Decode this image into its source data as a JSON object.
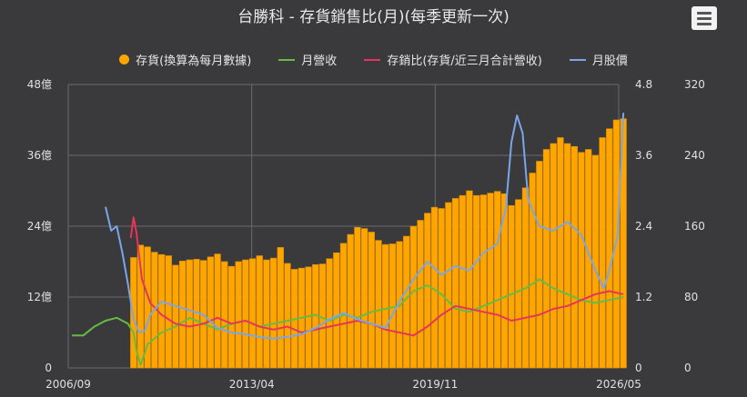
{
  "header": {
    "title": "台勝科 - 存貨銷售比(月)(每季更新一次)"
  },
  "menu": {
    "icon": "hamburger-menu-icon"
  },
  "colors": {
    "background": "#3a3a3d",
    "grid": "#6b6b6e",
    "bars": "#ffa500",
    "revenue": "#66bb44",
    "ratio": "#e8335a",
    "price": "#7aa6e8"
  },
  "chart_data": {
    "type": "bar+line",
    "title": "台勝科 - 存貨銷售比(月)(每季更新一次)",
    "legend": {
      "position": "top",
      "entries": [
        "存貨(換算為每月數據)",
        "月營收",
        "存銷比(存貨/近三月合計營收)",
        "月股價"
      ]
    },
    "grid": true,
    "x_axis": {
      "ticks": [
        "2006/09",
        "2013/04",
        "2019/11",
        "2026/05"
      ],
      "range": [
        "2006/09",
        "2026/05"
      ]
    },
    "y_axis_left": {
      "ticks": [
        "0",
        "12億",
        "24億",
        "36億",
        "48億"
      ],
      "range": [
        0,
        48
      ]
    },
    "y_axis_right1": {
      "ticks": [
        "0",
        "1.2",
        "2.4",
        "3.6",
        "4.8"
      ],
      "range": [
        0,
        4.8
      ]
    },
    "y_axis_right2": {
      "ticks": [
        "0",
        "80",
        "160",
        "240",
        "320"
      ],
      "range": [
        0,
        320
      ]
    },
    "series": [
      {
        "name": "存貨(換算為每月數據)",
        "kind": "bar",
        "axis": "left",
        "points": [
          [
            2009.0,
            18.7
          ],
          [
            2009.25,
            20.8
          ],
          [
            2009.5,
            20.5
          ],
          [
            2009.75,
            19.6
          ],
          [
            2010.0,
            19.2
          ],
          [
            2010.25,
            19.0
          ],
          [
            2010.5,
            17.4
          ],
          [
            2010.75,
            18.1
          ],
          [
            2011.0,
            18.3
          ],
          [
            2011.25,
            18.4
          ],
          [
            2011.5,
            18.2
          ],
          [
            2011.75,
            18.8
          ],
          [
            2012.0,
            19.3
          ],
          [
            2012.25,
            18.0
          ],
          [
            2012.5,
            17.2
          ],
          [
            2012.75,
            18.0
          ],
          [
            2013.0,
            18.3
          ],
          [
            2013.25,
            18.5
          ],
          [
            2013.5,
            19.0
          ],
          [
            2013.75,
            18.3
          ],
          [
            2014.0,
            18.6
          ],
          [
            2014.25,
            20.4
          ],
          [
            2014.5,
            17.7
          ],
          [
            2014.75,
            16.7
          ],
          [
            2015.0,
            16.9
          ],
          [
            2015.25,
            17.1
          ],
          [
            2015.5,
            17.5
          ],
          [
            2015.75,
            17.6
          ],
          [
            2016.0,
            18.5
          ],
          [
            2016.25,
            19.5
          ],
          [
            2016.5,
            21.1
          ],
          [
            2016.75,
            22.6
          ],
          [
            2017.0,
            23.8
          ],
          [
            2017.25,
            23.6
          ],
          [
            2017.5,
            23.0
          ],
          [
            2017.75,
            21.6
          ],
          [
            2018.0,
            20.9
          ],
          [
            2018.25,
            21.0
          ],
          [
            2018.5,
            21.4
          ],
          [
            2018.75,
            22.3
          ],
          [
            2019.0,
            24.0
          ],
          [
            2019.25,
            25.0
          ],
          [
            2019.5,
            26.2
          ],
          [
            2019.75,
            27.2
          ],
          [
            2020.0,
            27.0
          ],
          [
            2020.25,
            28.0
          ],
          [
            2020.5,
            28.7
          ],
          [
            2020.75,
            29.2
          ],
          [
            2021.0,
            30.0
          ],
          [
            2021.25,
            29.2
          ],
          [
            2021.5,
            29.3
          ],
          [
            2021.75,
            29.6
          ],
          [
            2022.0,
            29.9
          ],
          [
            2022.25,
            29.5
          ],
          [
            2022.5,
            27.5
          ],
          [
            2022.75,
            28.5
          ],
          [
            2023.0,
            30.5
          ],
          [
            2023.25,
            33.0
          ],
          [
            2023.5,
            35.0
          ],
          [
            2023.75,
            37.0
          ],
          [
            2024.0,
            38.0
          ],
          [
            2024.25,
            39.0
          ],
          [
            2024.5,
            38.0
          ],
          [
            2024.75,
            37.5
          ],
          [
            2025.0,
            36.5
          ],
          [
            2025.25,
            37.0
          ],
          [
            2025.5,
            36.0
          ],
          [
            2025.75,
            39.0
          ],
          [
            2026.0,
            40.5
          ],
          [
            2026.25,
            42.0
          ],
          [
            2026.5,
            42.2
          ]
        ]
      },
      {
        "name": "月營收",
        "kind": "line",
        "axis": "left",
        "points": [
          [
            2006.8,
            5.5
          ],
          [
            2007.2,
            5.5
          ],
          [
            2007.6,
            7.0
          ],
          [
            2008.0,
            8.0
          ],
          [
            2008.4,
            8.5
          ],
          [
            2008.8,
            7.5
          ],
          [
            2009.0,
            6.0
          ],
          [
            2009.1,
            3.0
          ],
          [
            2009.25,
            0.5
          ],
          [
            2009.5,
            4.0
          ],
          [
            2010.0,
            6.0
          ],
          [
            2010.5,
            7.0
          ],
          [
            2011.0,
            8.5
          ],
          [
            2011.5,
            7.5
          ],
          [
            2012.0,
            6.5
          ],
          [
            2012.5,
            7.5
          ],
          [
            2013.0,
            8.0
          ],
          [
            2013.5,
            7.0
          ],
          [
            2014.0,
            7.5
          ],
          [
            2014.5,
            8.0
          ],
          [
            2015.0,
            8.5
          ],
          [
            2015.5,
            9.0
          ],
          [
            2016.0,
            8.0
          ],
          [
            2016.5,
            9.0
          ],
          [
            2017.0,
            8.5
          ],
          [
            2017.5,
            9.5
          ],
          [
            2018.0,
            10.0
          ],
          [
            2018.5,
            10.5
          ],
          [
            2019.0,
            13.0
          ],
          [
            2019.5,
            14.0
          ],
          [
            2020.0,
            12.5
          ],
          [
            2020.5,
            10.0
          ],
          [
            2021.0,
            9.5
          ],
          [
            2021.5,
            10.5
          ],
          [
            2022.0,
            11.5
          ],
          [
            2022.5,
            12.5
          ],
          [
            2023.0,
            13.5
          ],
          [
            2023.5,
            15.0
          ],
          [
            2024.0,
            13.5
          ],
          [
            2024.5,
            12.5
          ],
          [
            2025.0,
            11.5
          ],
          [
            2025.5,
            11.0
          ],
          [
            2026.0,
            11.5
          ],
          [
            2026.5,
            12.0
          ]
        ]
      },
      {
        "name": "存銷比(存貨/近三月合計營收)",
        "kind": "line",
        "axis": "right1",
        "points": [
          [
            2008.9,
            2.2
          ],
          [
            2009.0,
            2.55
          ],
          [
            2009.1,
            2.3
          ],
          [
            2009.3,
            1.5
          ],
          [
            2009.6,
            1.1
          ],
          [
            2010.0,
            0.9
          ],
          [
            2010.5,
            0.75
          ],
          [
            2011.0,
            0.7
          ],
          [
            2011.5,
            0.75
          ],
          [
            2012.0,
            0.85
          ],
          [
            2012.5,
            0.75
          ],
          [
            2013.0,
            0.8
          ],
          [
            2013.5,
            0.7
          ],
          [
            2014.0,
            0.65
          ],
          [
            2014.5,
            0.7
          ],
          [
            2015.0,
            0.6
          ],
          [
            2015.5,
            0.65
          ],
          [
            2016.0,
            0.7
          ],
          [
            2016.5,
            0.75
          ],
          [
            2017.0,
            0.8
          ],
          [
            2017.5,
            0.75
          ],
          [
            2018.0,
            0.65
          ],
          [
            2018.5,
            0.6
          ],
          [
            2019.0,
            0.55
          ],
          [
            2019.5,
            0.7
          ],
          [
            2020.0,
            0.9
          ],
          [
            2020.5,
            1.05
          ],
          [
            2021.0,
            1.0
          ],
          [
            2021.5,
            0.95
          ],
          [
            2022.0,
            0.9
          ],
          [
            2022.5,
            0.8
          ],
          [
            2023.0,
            0.85
          ],
          [
            2023.5,
            0.9
          ],
          [
            2024.0,
            1.0
          ],
          [
            2024.5,
            1.05
          ],
          [
            2025.0,
            1.15
          ],
          [
            2025.5,
            1.25
          ],
          [
            2026.0,
            1.3
          ],
          [
            2026.5,
            1.25
          ]
        ]
      },
      {
        "name": "月股價",
        "kind": "line",
        "axis": "right2",
        "points": [
          [
            2008.0,
            182
          ],
          [
            2008.2,
            155
          ],
          [
            2008.4,
            160
          ],
          [
            2008.6,
            130
          ],
          [
            2008.8,
            95
          ],
          [
            2009.0,
            55
          ],
          [
            2009.2,
            40
          ],
          [
            2009.4,
            42
          ],
          [
            2009.6,
            60
          ],
          [
            2010.0,
            75
          ],
          [
            2010.5,
            70
          ],
          [
            2011.0,
            65
          ],
          [
            2011.5,
            60
          ],
          [
            2012.0,
            45
          ],
          [
            2012.5,
            40
          ],
          [
            2013.0,
            38
          ],
          [
            2013.5,
            35
          ],
          [
            2014.0,
            33
          ],
          [
            2014.5,
            35
          ],
          [
            2015.0,
            38
          ],
          [
            2015.5,
            45
          ],
          [
            2016.0,
            55
          ],
          [
            2016.5,
            62
          ],
          [
            2017.0,
            55
          ],
          [
            2017.5,
            50
          ],
          [
            2018.0,
            45
          ],
          [
            2018.5,
            75
          ],
          [
            2019.0,
            100
          ],
          [
            2019.5,
            120
          ],
          [
            2020.0,
            105
          ],
          [
            2020.5,
            115
          ],
          [
            2021.0,
            110
          ],
          [
            2021.5,
            130
          ],
          [
            2022.0,
            140
          ],
          [
            2022.3,
            180
          ],
          [
            2022.5,
            255
          ],
          [
            2022.7,
            285
          ],
          [
            2022.9,
            265
          ],
          [
            2023.1,
            190
          ],
          [
            2023.5,
            160
          ],
          [
            2024.0,
            155
          ],
          [
            2024.5,
            165
          ],
          [
            2025.0,
            150
          ],
          [
            2025.5,
            110
          ],
          [
            2025.8,
            90
          ],
          [
            2026.0,
            110
          ],
          [
            2026.3,
            150
          ],
          [
            2026.5,
            288
          ]
        ]
      }
    ]
  }
}
